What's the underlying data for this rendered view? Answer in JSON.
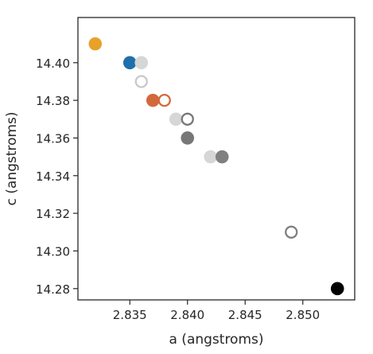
{
  "chart_data": {
    "type": "scatter",
    "title": "",
    "xlabel": "a (angstroms)",
    "ylabel": "c (angstroms)",
    "xlim": [
      2.8305,
      2.8545
    ],
    "ylim": [
      14.274,
      14.424
    ],
    "x_ticks": [
      2.835,
      2.84,
      2.845,
      2.85
    ],
    "x_tick_labels": [
      "2.835",
      "2.840",
      "2.845",
      "2.850"
    ],
    "y_ticks": [
      14.28,
      14.3,
      14.32,
      14.34,
      14.36,
      14.38,
      14.4
    ],
    "y_tick_labels": [
      "14.28",
      "14.30",
      "14.32",
      "14.34",
      "14.36",
      "14.38",
      "14.40"
    ],
    "grid": false,
    "legend": "none",
    "points": [
      {
        "x": 2.832,
        "y": 14.41,
        "color": "#e8a22a",
        "filled": true
      },
      {
        "x": 2.835,
        "y": 14.4,
        "color": "#1f6fad",
        "filled": true
      },
      {
        "x": 2.836,
        "y": 14.4,
        "color": "#d6d6d6",
        "filled": true
      },
      {
        "x": 2.836,
        "y": 14.39,
        "color": "#c8c8c8",
        "filled": false
      },
      {
        "x": 2.837,
        "y": 14.38,
        "color": "#d2693c",
        "filled": true
      },
      {
        "x": 2.838,
        "y": 14.38,
        "color": "#d2693c",
        "filled": false
      },
      {
        "x": 2.839,
        "y": 14.37,
        "color": "#d6d6d6",
        "filled": true
      },
      {
        "x": 2.84,
        "y": 14.37,
        "color": "#777777",
        "filled": false
      },
      {
        "x": 2.84,
        "y": 14.36,
        "color": "#777777",
        "filled": true
      },
      {
        "x": 2.842,
        "y": 14.35,
        "color": "#d6d6d6",
        "filled": true
      },
      {
        "x": 2.843,
        "y": 14.35,
        "color": "#808080",
        "filled": true
      },
      {
        "x": 2.849,
        "y": 14.31,
        "color": "#808080",
        "filled": false
      },
      {
        "x": 2.853,
        "y": 14.28,
        "color": "#000000",
        "filled": true
      }
    ]
  }
}
